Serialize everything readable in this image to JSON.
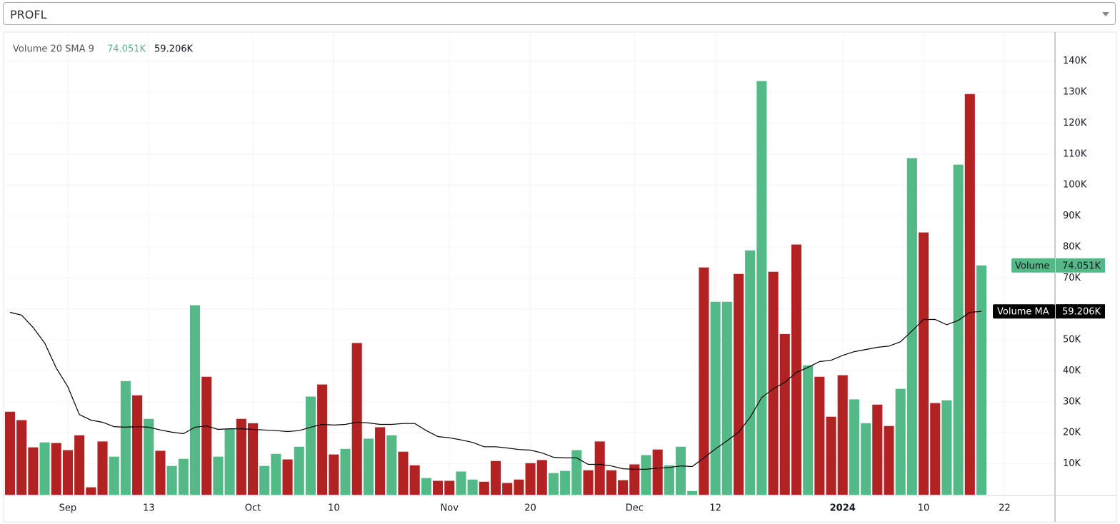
{
  "symbol": "PROFL",
  "chart_data": {
    "type": "bar",
    "title": "Volume 20 SMA 9",
    "series": [
      {
        "name": "Volume",
        "values": [
          26800,
          24100,
          15300,
          16900,
          16700,
          14400,
          19200,
          2400,
          17200,
          12300,
          36700,
          32100,
          24500,
          14200,
          9300,
          11600,
          61200,
          38100,
          12300,
          21300,
          24500,
          23100,
          9300,
          13200,
          11400,
          15500,
          31700,
          35600,
          13000,
          14800,
          49000,
          18100,
          21800,
          19200,
          13900,
          9500,
          5400,
          4500,
          4500,
          7500,
          4900,
          4200,
          10900,
          3800,
          4900,
          10200,
          11200,
          7000,
          7700,
          14400,
          7900,
          17200,
          7900,
          4700,
          9800,
          12800,
          14600,
          9500,
          15500,
          1200,
          73400,
          62300,
          62300,
          71300,
          78900,
          133600,
          72000,
          51900,
          80800,
          41800,
          38100,
          25200,
          38600,
          30800,
          23100,
          29100,
          22200,
          34200,
          108700,
          84700,
          29600,
          30500,
          106600,
          129400,
          74051
        ],
        "value_labels": [
          null,
          null,
          null,
          null,
          null,
          null,
          null,
          null,
          null,
          null,
          null,
          null,
          null,
          null,
          null,
          null,
          null,
          null,
          null,
          null,
          null,
          null,
          null,
          null,
          null,
          null,
          null,
          null,
          null,
          null,
          null,
          null,
          null,
          null,
          null,
          null,
          null,
          null,
          null,
          null,
          null,
          null,
          null,
          null,
          null,
          null,
          null,
          null,
          null,
          null,
          null,
          null,
          null,
          null,
          null,
          null,
          null,
          null,
          null,
          null,
          null,
          null,
          null,
          null,
          null,
          null,
          null,
          null,
          null,
          null,
          null,
          null,
          null,
          null,
          null,
          null,
          null,
          null,
          null,
          null,
          null,
          null,
          null,
          null,
          "74.051K"
        ],
        "color": "#53b987",
        "colors": [
          "#b22222",
          "#b22222",
          "#b22222",
          "#53b987",
          "#b22222",
          "#b22222",
          "#b22222",
          "#b22222",
          "#b22222",
          "#53b987",
          "#53b987",
          "#b22222",
          "#53b987",
          "#b22222",
          "#53b987",
          "#53b987",
          "#53b987",
          "#b22222",
          "#53b987",
          "#53b987",
          "#b22222",
          "#b22222",
          "#53b987",
          "#53b987",
          "#b22222",
          "#53b987",
          "#53b987",
          "#b22222",
          "#b22222",
          "#53b987",
          "#b22222",
          "#53b987",
          "#b22222",
          "#53b987",
          "#b22222",
          "#b22222",
          "#53b987",
          "#b22222",
          "#b22222",
          "#53b987",
          "#53b987",
          "#b22222",
          "#b22222",
          "#b22222",
          "#b22222",
          "#b22222",
          "#b22222",
          "#53b987",
          "#53b987",
          "#53b987",
          "#b22222",
          "#b22222",
          "#b22222",
          "#b22222",
          "#b22222",
          "#53b987",
          "#b22222",
          "#53b987",
          "#53b987",
          "#53b987",
          "#b22222",
          "#53b987",
          "#53b987",
          "#b22222",
          "#53b987",
          "#53b987",
          "#b22222",
          "#b22222",
          "#b22222",
          "#53b987",
          "#b22222",
          "#b22222",
          "#b22222",
          "#53b987",
          "#53b987",
          "#b22222",
          "#b22222",
          "#53b987",
          "#53b987",
          "#b22222",
          "#b22222",
          "#53b987",
          "#53b987",
          "#b22222",
          "#53b987"
        ]
      },
      {
        "name": "Volume MA",
        "type": "line",
        "color": "#000000",
        "values": [
          58900,
          58000,
          54000,
          49000,
          40900,
          34900,
          25900,
          24100,
          23400,
          22000,
          21800,
          22000,
          21800,
          20900,
          20200,
          19700,
          21800,
          22200,
          21100,
          21300,
          21300,
          21100,
          20900,
          20700,
          20400,
          20700,
          21800,
          22700,
          22500,
          22700,
          23400,
          23200,
          22700,
          22700,
          23000,
          23000,
          20700,
          18800,
          18400,
          17700,
          16900,
          15500,
          15500,
          15100,
          14600,
          14400,
          13500,
          12100,
          11900,
          11900,
          9800,
          9800,
          9300,
          8400,
          8200,
          8200,
          8600,
          8800,
          9300,
          9100,
          11900,
          14800,
          17400,
          20200,
          25000,
          31400,
          34200,
          36300,
          39500,
          41100,
          43000,
          43400,
          45000,
          46200,
          46900,
          47600,
          48000,
          49400,
          52900,
          56600,
          56600,
          54900,
          56300,
          58900,
          59206
        ],
        "value_labels": [
          null,
          null,
          null,
          null,
          null,
          null,
          null,
          null,
          null,
          null,
          null,
          null,
          null,
          null,
          null,
          null,
          null,
          null,
          null,
          null,
          null,
          null,
          null,
          null,
          null,
          null,
          null,
          null,
          null,
          null,
          null,
          null,
          null,
          null,
          null,
          null,
          null,
          null,
          null,
          null,
          null,
          null,
          null,
          null,
          null,
          null,
          null,
          null,
          null,
          null,
          null,
          null,
          null,
          null,
          null,
          null,
          null,
          null,
          null,
          null,
          null,
          null,
          null,
          null,
          null,
          null,
          null,
          null,
          null,
          null,
          null,
          null,
          null,
          null,
          null,
          null,
          null,
          null,
          null,
          null,
          null,
          null,
          null,
          null,
          "59.206K"
        ]
      }
    ],
    "xlim": [
      -0.37,
      90.3
    ],
    "xticks": [
      {
        "value": 5,
        "label": "Sep"
      },
      {
        "value": 12,
        "label": "13"
      },
      {
        "value": 21,
        "label": "Oct"
      },
      {
        "value": 28,
        "label": "10"
      },
      {
        "value": 38,
        "label": "Nov"
      },
      {
        "value": 45,
        "label": "20"
      },
      {
        "value": 54,
        "label": "Dec"
      },
      {
        "value": 61,
        "label": "12"
      },
      {
        "value": 72,
        "label": "2024"
      },
      {
        "value": 79,
        "label": "10"
      },
      {
        "value": 86,
        "label": "22"
      }
    ],
    "ylim": [
      0,
      148700
    ],
    "yticks": [
      {
        "value": 10000,
        "label": "10K"
      },
      {
        "value": 20000,
        "label": "20K"
      },
      {
        "value": 30000,
        "label": "30K"
      },
      {
        "value": 40000,
        "label": "40K"
      },
      {
        "value": 50000,
        "label": "50K"
      },
      {
        "value": 60000,
        "label": "60K"
      },
      {
        "value": 70000,
        "label": "70K"
      },
      {
        "value": 80000,
        "label": "80K"
      },
      {
        "value": 90000,
        "label": "90K"
      },
      {
        "value": 100000,
        "label": "100K"
      },
      {
        "value": 110000,
        "label": "110K"
      },
      {
        "value": 120000,
        "label": "120K"
      },
      {
        "value": 130000,
        "label": "130K"
      },
      {
        "value": 140000,
        "label": "140K"
      }
    ],
    "grid": true
  }
}
